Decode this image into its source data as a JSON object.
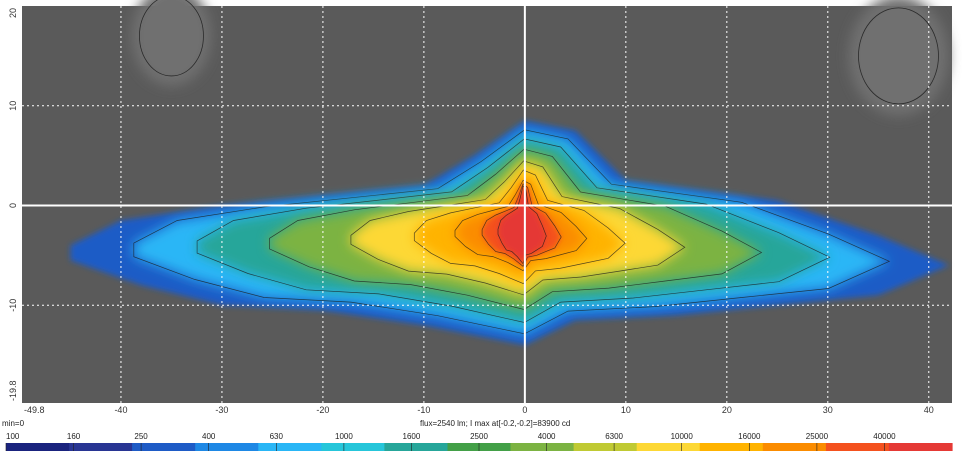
{
  "chart_data": {
    "type": "heatmap",
    "title": "",
    "xlabel": "",
    "ylabel": "",
    "xlim": [
      -49.8,
      42.3
    ],
    "ylim": [
      -19.8,
      20
    ],
    "x_tick_labels": [
      "-49.8",
      "-40",
      "-30",
      "-20",
      "-10",
      "0",
      "10",
      "20",
      "30",
      "40"
    ],
    "x_tick_values": [
      -49.8,
      -40,
      -30,
      -20,
      -10,
      0,
      10,
      20,
      30,
      40
    ],
    "y_tick_labels": [
      "20",
      "10",
      "0",
      "-10",
      "-19.8"
    ],
    "y_tick_values": [
      20,
      10,
      0,
      -10,
      -19.8
    ],
    "grid": true,
    "background_color": "#5a5a5a",
    "grid_color": "#ffffff",
    "axis_line_color": "#ffffff",
    "info": {
      "min_label": "min=0",
      "flux_label": "flux=2540 lm; I max at[-0.2,-0.2]=83900 cd"
    },
    "color_scale": {
      "labels": [
        "100",
        "160",
        "250",
        "400",
        "630",
        "1000",
        "1600",
        "2500",
        "4000",
        "6300",
        "10000",
        "16000",
        "25000",
        "40000"
      ],
      "colors": [
        "#1a237e",
        "#283593",
        "#1e5bc6",
        "#1e88e5",
        "#29b6f6",
        "#26c6da",
        "#26a69a",
        "#43a047",
        "#7cb342",
        "#c0ca33",
        "#fdd835",
        "#ffb300",
        "#fb8c00",
        "#f4511e",
        "#e53935"
      ]
    },
    "contour_levels": [
      100,
      160,
      250,
      400,
      630,
      1000,
      1600,
      2500,
      4000,
      6300,
      10000,
      16000,
      25000,
      40000
    ],
    "peak": {
      "x": -0.2,
      "y": -0.2,
      "value": 83900,
      "unit": "cd"
    }
  }
}
